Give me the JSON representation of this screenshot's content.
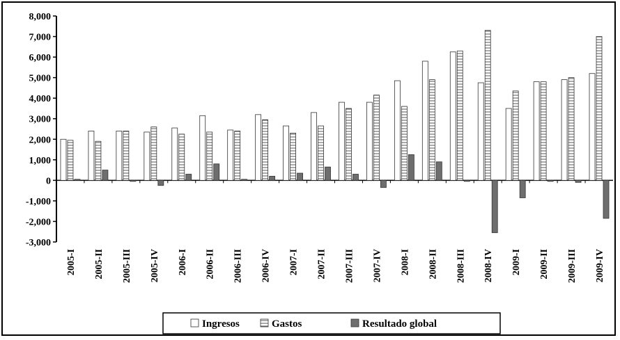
{
  "chart_data": {
    "type": "bar",
    "title": "",
    "xlabel": "",
    "ylabel": "",
    "ylim": [
      -3000,
      8000
    ],
    "yticks": [
      -3000,
      -2000,
      -1000,
      0,
      1000,
      2000,
      3000,
      4000,
      5000,
      6000,
      7000,
      8000
    ],
    "ytick_labels": [
      "-3,000",
      "-2,000",
      "-1,000",
      "0",
      "1,000",
      "2,000",
      "3,000",
      "4,000",
      "5,000",
      "6,000",
      "7,000",
      "8,000"
    ],
    "grid": false,
    "legend_position": "bottom-center",
    "categories": [
      "2005-I",
      "2005-II",
      "2005-III",
      "2005-IV",
      "2006-I",
      "2006-II",
      "2006-III",
      "2006-IV",
      "2007-I",
      "2007-II",
      "2007-III",
      "2007-IV",
      "2008-I",
      "2008-II",
      "2008-III",
      "2008-IV",
      "2009-I",
      "2009-II",
      "2009-III",
      "2009-IV"
    ],
    "series": [
      {
        "name": "Ingresos",
        "pattern": "white",
        "values": [
          2000,
          2400,
          2400,
          2350,
          2550,
          3150,
          2450,
          3200,
          2650,
          3300,
          3800,
          3800,
          4850,
          5800,
          6250,
          4750,
          3500,
          4800,
          4900,
          5200
        ]
      },
      {
        "name": "Gastos",
        "pattern": "hatched",
        "values": [
          1950,
          1900,
          2400,
          2600,
          2250,
          2350,
          2400,
          2950,
          2300,
          2650,
          3500,
          4150,
          3600,
          4900,
          6300,
          7300,
          4350,
          4800,
          5000,
          7000
        ]
      },
      {
        "name": "Resultado global",
        "pattern": "dark",
        "values": [
          50,
          500,
          -50,
          -250,
          300,
          800,
          50,
          200,
          350,
          650,
          300,
          -350,
          1250,
          900,
          -50,
          -2550,
          -850,
          -50,
          -100,
          -1850
        ]
      }
    ],
    "colors": {
      "dark_bar": "#6e6e6e",
      "bar_stroke": "#333333",
      "hatch": "#555555"
    }
  }
}
